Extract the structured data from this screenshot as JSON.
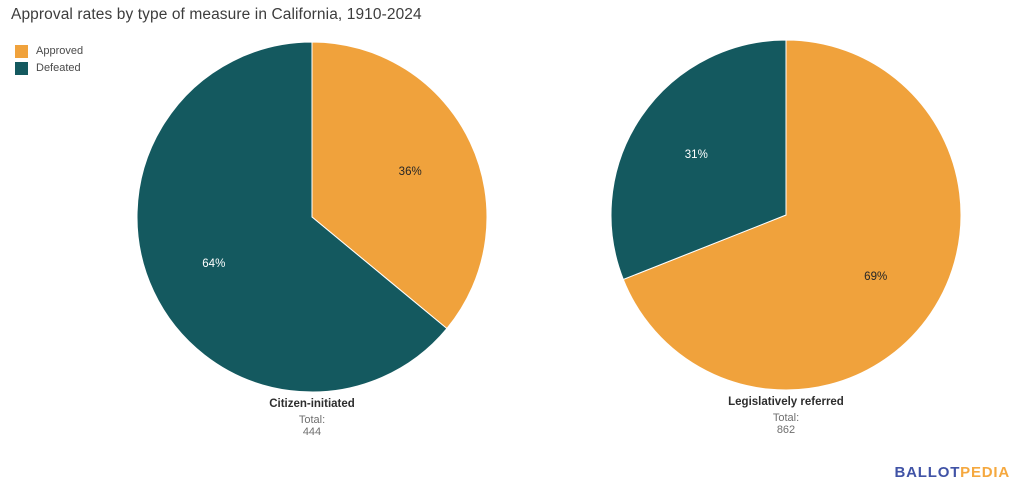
{
  "title": "Approval rates by type of measure in California, 1910-2024",
  "legend": {
    "position": "top-left",
    "items": [
      {
        "label": "Approved",
        "color": "#F0A23C"
      },
      {
        "label": "Defeated",
        "color": "#14595F"
      }
    ]
  },
  "chart_data": [
    {
      "type": "pie",
      "title": "Citizen-initiated",
      "total_label": "Total:",
      "total": 444,
      "labels": [
        "Approved",
        "Defeated"
      ],
      "values_pct": [
        36,
        64
      ],
      "pct_labels": [
        "36%",
        "64%"
      ],
      "colors": [
        "#F0A23C",
        "#14595F"
      ],
      "label_text_colors": [
        "#262626",
        "#FFFFFF"
      ],
      "start_angle_deg": 0,
      "direction": "clockwise",
      "legend_position": "top-left"
    },
    {
      "type": "pie",
      "title": "Legislatively referred",
      "total_label": "Total:",
      "total": 862,
      "labels": [
        "Approved",
        "Defeated"
      ],
      "values_pct": [
        69,
        31
      ],
      "pct_labels": [
        "69%",
        "31%"
      ],
      "colors": [
        "#F0A23C",
        "#14595F"
      ],
      "label_text_colors": [
        "#262626",
        "#FFFFFF"
      ],
      "start_angle_deg": 0,
      "direction": "clockwise",
      "legend_position": "top-left"
    }
  ],
  "branding": {
    "ballot": "BALLOT",
    "pedia": "PEDIA",
    "ballot_color": "#4053A6",
    "pedia_color": "#F5A83F"
  },
  "colors": {
    "approved": "#F0A23C",
    "defeated": "#14595F",
    "background": "#FFFFFF",
    "title_text": "#3D3D3D",
    "caption_text": "#6F6F6F"
  }
}
